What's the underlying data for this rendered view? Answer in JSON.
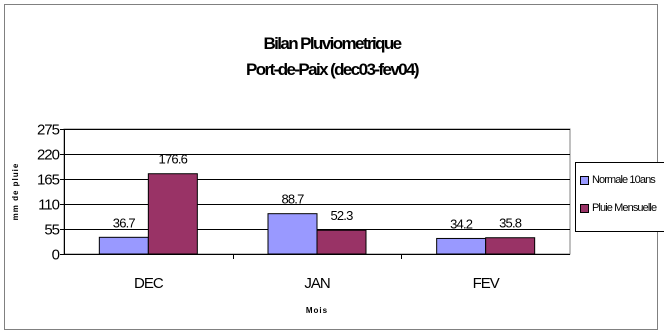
{
  "chart_data": {
    "type": "bar",
    "title": [
      "Bilan Pluviometrique",
      "Port-de-Paix (dec03-fev04)"
    ],
    "xlabel": "Mois",
    "ylabel": "mm de pluie",
    "categories": [
      "DEC",
      "JAN",
      "FEV"
    ],
    "series": [
      {
        "name": "Normale 10ans",
        "values": [
          36.7,
          88.7,
          34.2
        ],
        "labels": [
          "36.7",
          "88.7",
          "34.2"
        ],
        "color": "#9999ff"
      },
      {
        "name": "Pluie Mensuelle",
        "values": [
          176.6,
          52.3,
          35.8
        ],
        "labels": [
          "176.6",
          "52.3",
          "35.8"
        ],
        "color": "#993366"
      }
    ],
    "ylim": [
      0,
      275
    ],
    "yticks": [
      0,
      55,
      110,
      165,
      220,
      275
    ],
    "grid": true,
    "legend": "right"
  }
}
